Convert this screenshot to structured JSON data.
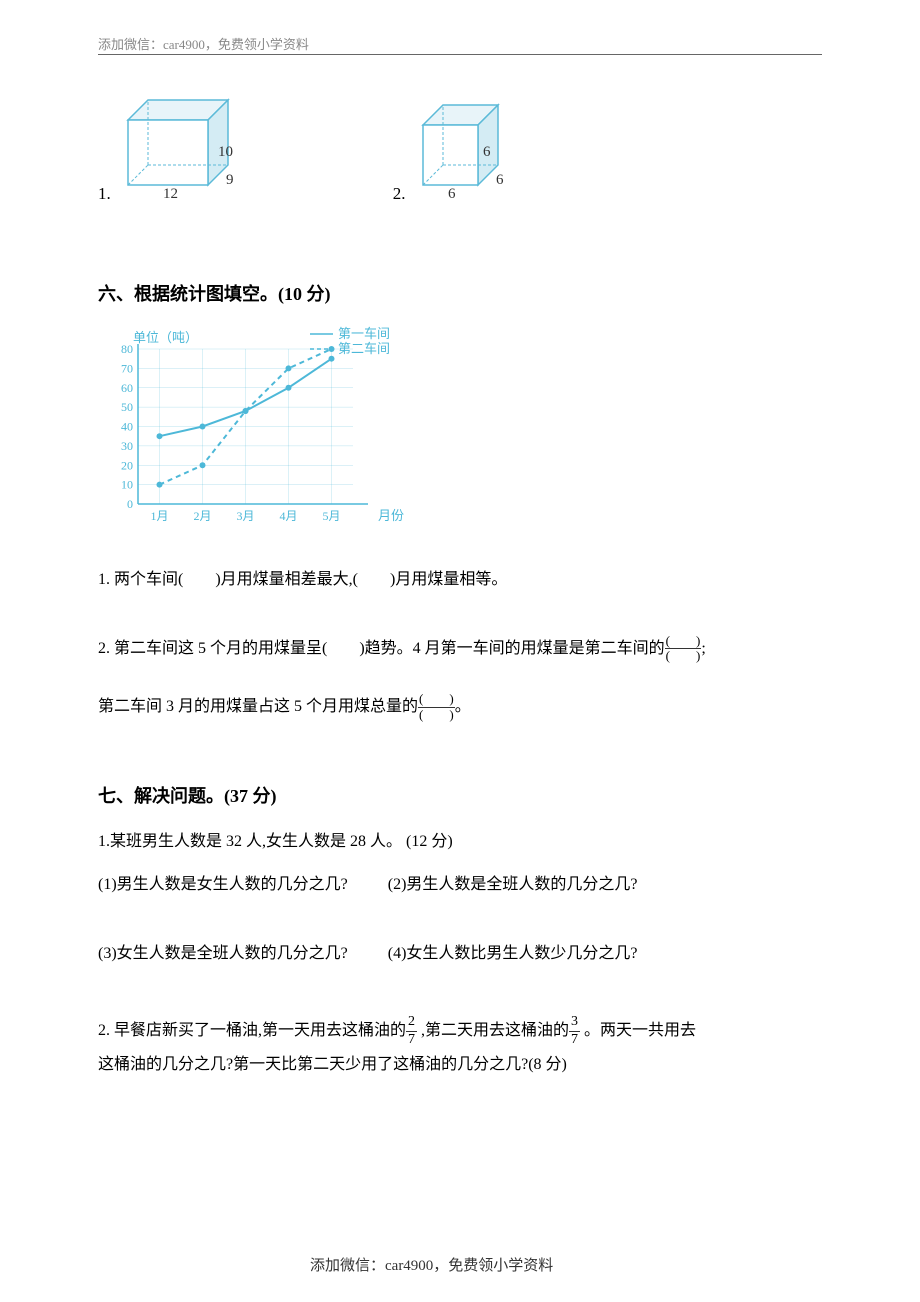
{
  "header": {
    "text": "添加微信：car4900，免费领小学资料"
  },
  "footer": {
    "text": "添加微信：car4900，免费领小学资料"
  },
  "cuboids": {
    "item1": {
      "num": "1.",
      "length": "12",
      "width": "9",
      "height": "10",
      "stroke": "#5bbad8",
      "fill": "#d4ecf4",
      "lightfill": "#e8f4f9"
    },
    "item2": {
      "num": "2.",
      "side": "6",
      "stroke": "#5bbad8",
      "fill": "#d4ecf4",
      "lightfill": "#e8f4f9"
    }
  },
  "section6": {
    "title": "六、根据统计图填空。(10 分)",
    "chart": {
      "y_label": "单位（吨）",
      "x_label": "月份",
      "legend1": "第一车间",
      "legend2": "第二车间",
      "y_ticks": [
        "0",
        "10",
        "20",
        "30",
        "40",
        "50",
        "60",
        "70",
        "80"
      ],
      "x_ticks": [
        "1月",
        "2月",
        "3月",
        "4月",
        "5月"
      ],
      "series1": [
        35,
        40,
        48,
        60,
        75
      ],
      "series2": [
        10,
        20,
        48,
        70,
        80
      ],
      "stroke": "#4db8d8",
      "grid_color": "#4db8d8",
      "text_color": "#333333",
      "y_max": 80,
      "y_step": 10
    },
    "q1": "1. 两个车间(　　)月用煤量相差最大,(　　)月用煤量相等。",
    "q2_part1": "2. 第二车间这 5 个月的用煤量呈(　　)趋势。4 月第一车间的用煤量是第二车间的",
    "q2_part2": ";",
    "q2_part3": "第二车间 3 月的用煤量占这 5 个月用煤总量的",
    "q2_part4": "。",
    "paren_top": "(　　)",
    "paren_bot": "(　　)"
  },
  "section7": {
    "title": "七、解决问题。(37 分)",
    "q1_intro": "1.某班男生人数是 32 人,女生人数是 28 人。 (12 分)",
    "q1_sub1": "(1)男生人数是女生人数的几分之几?",
    "q1_sub2": "(2)男生人数是全班人数的几分之几?",
    "q1_sub3": "(3)女生人数是全班人数的几分之几?",
    "q1_sub4": "(4)女生人数比男生人数少几分之几?",
    "q2_part1": "2. 早餐店新买了一桶油,第一天用去这桶油的",
    "q2_frac1_top": "2",
    "q2_frac1_bot": "7",
    "q2_part2": " ,第二天用去这桶油的",
    "q2_frac2_top": "3",
    "q2_frac2_bot": "7",
    "q2_part3": " 。两天一共用去",
    "q2_line2": "这桶油的几分之几?第一天比第二天少用了这桶油的几分之几?(8 分)"
  }
}
